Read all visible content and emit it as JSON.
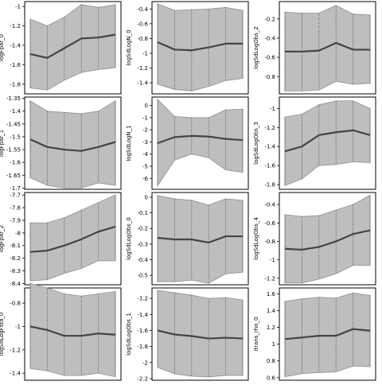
{
  "chart_data": [
    {
      "type": "line",
      "ylabel": "logFpar_0",
      "x": [
        1,
        2,
        3,
        4,
        5,
        6
      ],
      "yticks": [
        -1.0,
        -1.2,
        -1.4,
        -1.6,
        -1.8
      ],
      "ylim": [
        -1.9,
        -0.95
      ],
      "series": [
        {
          "values": [
            -1.49,
            -1.53,
            -1.43,
            -1.33,
            -1.32,
            -1.29
          ]
        }
      ],
      "band": {
        "lower": [
          -1.84,
          -1.86,
          -1.76,
          -1.68,
          -1.65,
          -1.63
        ],
        "upper": [
          -1.13,
          -1.2,
          -1.11,
          -0.98,
          -1.01,
          -0.98
        ]
      }
    },
    {
      "type": "line",
      "ylabel": "logSdLogN_0",
      "x": [
        1,
        2,
        3,
        4,
        5,
        6
      ],
      "yticks": [
        -0.4,
        -0.6,
        -0.8,
        -1.0,
        -1.2,
        -1.4
      ],
      "ylim": [
        -1.55,
        -0.3
      ],
      "series": [
        {
          "values": [
            -0.85,
            -0.95,
            -0.96,
            -0.92,
            -0.87,
            -0.87
          ]
        }
      ],
      "band": {
        "lower": [
          -1.42,
          -1.49,
          -1.51,
          -1.45,
          -1.37,
          -1.34
        ],
        "upper": [
          -0.33,
          -0.42,
          -0.41,
          -0.4,
          -0.38,
          -0.42
        ]
      }
    },
    {
      "type": "line",
      "ylabel": "logSdLogObs_2",
      "x": [
        1,
        2,
        3,
        4,
        5,
        6
      ],
      "yticks": [
        -0.2,
        -0.4,
        -0.6,
        -0.8
      ],
      "ylim": [
        -0.98,
        -0.02
      ],
      "series": [
        {
          "values": [
            -0.54,
            -0.54,
            -0.53,
            -0.45,
            -0.52,
            -0.52
          ]
        }
      ],
      "band": {
        "lower": [
          -0.95,
          -0.95,
          -0.94,
          -0.85,
          -0.88,
          -0.87
        ],
        "upper": [
          -0.13,
          -0.14,
          -0.14,
          -0.06,
          -0.15,
          -0.16
        ]
      }
    },
    {
      "type": "line",
      "ylabel": "logFpar_1",
      "x": [
        1,
        2,
        3,
        4,
        5,
        6
      ],
      "yticks": [
        -1.35,
        -1.4,
        -1.45,
        -1.5,
        -1.55,
        -1.6,
        -1.65,
        -1.7
      ],
      "ylim": [
        -1.705,
        -1.345
      ],
      "series": [
        {
          "values": [
            -1.51,
            -1.54,
            -1.55,
            -1.555,
            -1.54,
            -1.52
          ]
        }
      ],
      "band": {
        "lower": [
          -1.66,
          -1.69,
          -1.7,
          -1.7,
          -1.68,
          -1.69
        ],
        "upper": [
          -1.36,
          -1.4,
          -1.405,
          -1.41,
          -1.4,
          -1.36
        ]
      }
    },
    {
      "type": "line",
      "ylabel": "logSdLogN_1",
      "x": [
        1,
        2,
        3,
        4,
        5,
        6
      ],
      "yticks": [
        0,
        -1,
        -2,
        -3,
        -4,
        -5,
        -6
      ],
      "ylim": [
        -6.9,
        0.7
      ],
      "series": [
        {
          "values": [
            -3.1,
            -2.6,
            -2.5,
            -2.55,
            -2.75,
            -2.85
          ]
        }
      ],
      "band": {
        "lower": [
          -6.6,
          -4.5,
          -4.0,
          -4.3,
          -5.3,
          -5.5
        ],
        "upper": [
          0.5,
          -0.9,
          -1.0,
          -1.0,
          -0.35,
          -0.3
        ]
      }
    },
    {
      "type": "line",
      "ylabel": "logSdLogObs_3",
      "x": [
        1,
        2,
        3,
        4,
        5,
        6
      ],
      "yticks": [
        -1.0,
        -1.2,
        -1.4,
        -1.6,
        -1.8
      ],
      "ylim": [
        -1.85,
        -0.88
      ],
      "series": [
        {
          "values": [
            -1.45,
            -1.4,
            -1.28,
            -1.25,
            -1.23,
            -1.28
          ]
        }
      ],
      "band": {
        "lower": [
          -1.81,
          -1.74,
          -1.6,
          -1.59,
          -1.56,
          -1.57
        ],
        "upper": [
          -1.09,
          -1.06,
          -0.96,
          -0.92,
          -0.92,
          -1.0
        ]
      }
    },
    {
      "type": "line",
      "ylabel": "logFpar_2",
      "x": [
        1,
        2,
        3,
        4,
        5,
        6
      ],
      "yticks": [
        -7.7,
        -7.8,
        -7.9,
        -8.0,
        -8.1,
        -8.2,
        -8.3,
        -8.4
      ],
      "ylim": [
        -8.41,
        -7.68
      ],
      "series": [
        {
          "values": [
            -8.15,
            -8.14,
            -8.1,
            -8.05,
            -7.99,
            -7.95
          ]
        }
      ],
      "band": {
        "lower": [
          -8.38,
          -8.37,
          -8.32,
          -8.28,
          -8.22,
          -8.22
        ],
        "upper": [
          -7.92,
          -7.92,
          -7.88,
          -7.82,
          -7.76,
          -7.7
        ]
      }
    },
    {
      "type": "line",
      "ylabel": "logSdLogObs_0",
      "x": [
        1,
        2,
        3,
        4,
        5,
        6
      ],
      "yticks": [
        0.0,
        -0.1,
        -0.2,
        -0.3,
        -0.4,
        -0.5
      ],
      "ylim": [
        -0.56,
        0.03
      ],
      "series": [
        {
          "values": [
            -0.26,
            -0.27,
            -0.27,
            -0.29,
            -0.25,
            -0.25
          ]
        }
      ],
      "band": {
        "lower": [
          -0.54,
          -0.54,
          -0.53,
          -0.55,
          -0.49,
          -0.48
        ],
        "upper": [
          0.01,
          -0.01,
          -0.02,
          -0.05,
          -0.01,
          -0.02
        ]
      }
    },
    {
      "type": "line",
      "ylabel": "logSdLogObs_4",
      "x": [
        1,
        2,
        3,
        4,
        5,
        6
      ],
      "yticks": [
        -0.4,
        -0.6,
        -0.8,
        -1.0,
        -1.2
      ],
      "ylim": [
        -1.27,
        -0.27
      ],
      "series": [
        {
          "values": [
            -0.88,
            -0.89,
            -0.86,
            -0.8,
            -0.72,
            -0.68
          ]
        }
      ],
      "band": {
        "lower": [
          -1.25,
          -1.25,
          -1.21,
          -1.15,
          -1.06,
          -1.06
        ],
        "upper": [
          -0.51,
          -0.53,
          -0.52,
          -0.46,
          -0.4,
          -0.3
        ]
      }
    },
    {
      "type": "line",
      "ylabel": "logSdLogFsta_0",
      "x": [
        1,
        2,
        3,
        4,
        5,
        6
      ],
      "yticks": [
        -0.8,
        -1.0,
        -1.2,
        -1.4
      ],
      "ylim": [
        -1.46,
        -0.67
      ],
      "series": [
        {
          "values": [
            -1.0,
            -1.03,
            -1.08,
            -1.08,
            -1.06,
            -1.07
          ]
        }
      ],
      "band": {
        "lower": [
          -1.36,
          -1.38,
          -1.42,
          -1.42,
          -1.4,
          -1.43
        ],
        "upper": [
          -0.63,
          -0.67,
          -0.72,
          -0.74,
          -0.72,
          -0.7
        ]
      }
    },
    {
      "type": "line",
      "ylabel": "logSdLogObs_1",
      "x": [
        1,
        2,
        3,
        4,
        5,
        6
      ],
      "yticks": [
        -1.2,
        -1.4,
        -1.6,
        -1.8,
        -2.0,
        -2.2
      ],
      "ylim": [
        -2.22,
        -1.07
      ],
      "series": [
        {
          "values": [
            -1.6,
            -1.65,
            -1.67,
            -1.7,
            -1.69,
            -1.7
          ]
        }
      ],
      "band": {
        "lower": [
          -2.06,
          -2.14,
          -2.17,
          -2.18,
          -2.16,
          -2.16
        ],
        "upper": [
          -1.1,
          -1.13,
          -1.16,
          -1.2,
          -1.19,
          -1.22
        ]
      }
    },
    {
      "type": "line",
      "ylabel": "itrans_rho_0",
      "x": [
        1,
        2,
        3,
        4,
        5,
        6
      ],
      "yticks": [
        1.6,
        1.4,
        1.2,
        1.0,
        0.8,
        0.6
      ],
      "ylim": [
        0.57,
        1.67
      ],
      "series": [
        {
          "values": [
            1.06,
            1.08,
            1.1,
            1.1,
            1.18,
            1.16
          ]
        }
      ],
      "band": {
        "lower": [
          0.61,
          0.65,
          0.66,
          0.67,
          0.74,
          0.73
        ],
        "upper": [
          1.51,
          1.54,
          1.56,
          1.55,
          1.61,
          1.58
        ]
      }
    }
  ],
  "colors": {
    "band": "#bebebe",
    "band_stroke": "#909090",
    "line": "#444444",
    "frame": "#000000"
  }
}
